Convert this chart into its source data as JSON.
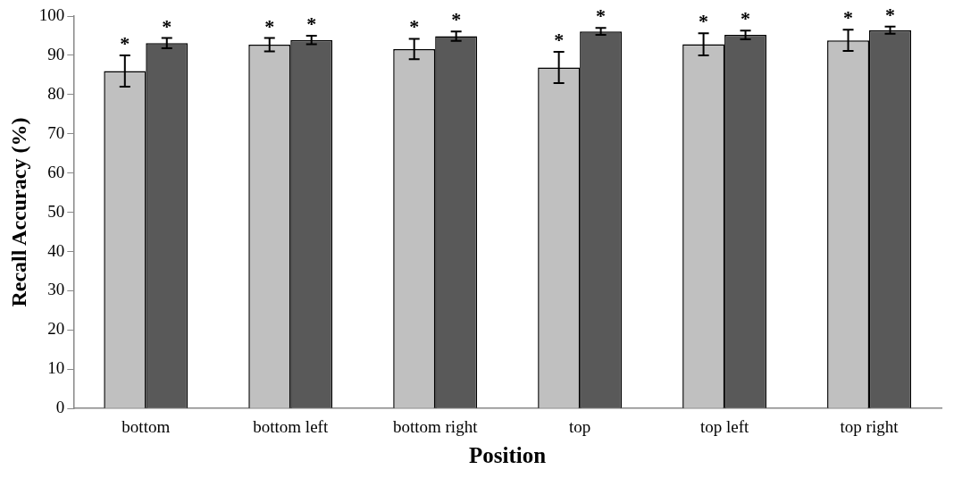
{
  "chart_data": {
    "type": "bar",
    "xlabel": "Position",
    "ylabel": "Recall Accuracy (%)",
    "categories": [
      "bottom",
      "bottom left",
      "bottom right",
      "top",
      "top left",
      "top right"
    ],
    "series": [
      {
        "color": "#c0c0c0",
        "values": [
          86.0,
          92.7,
          91.6,
          86.9,
          92.8,
          93.8
        ],
        "errors": [
          4.0,
          1.7,
          2.6,
          4.0,
          2.8,
          2.7
        ]
      },
      {
        "color": "#595959",
        "values": [
          93.1,
          93.9,
          94.9,
          96.1,
          95.2,
          96.4
        ],
        "errors": [
          1.3,
          1.1,
          1.2,
          0.9,
          1.1,
          0.9
        ]
      }
    ],
    "ylim": [
      0,
      100
    ],
    "yticks": [
      0,
      10,
      20,
      30,
      40,
      50,
      60,
      70,
      80,
      90,
      100
    ],
    "grid": false,
    "legend": false,
    "annotations": [
      "*",
      "*",
      "*",
      "*",
      "*",
      "*",
      "*",
      "*",
      "*",
      "*",
      "*",
      "*"
    ]
  }
}
